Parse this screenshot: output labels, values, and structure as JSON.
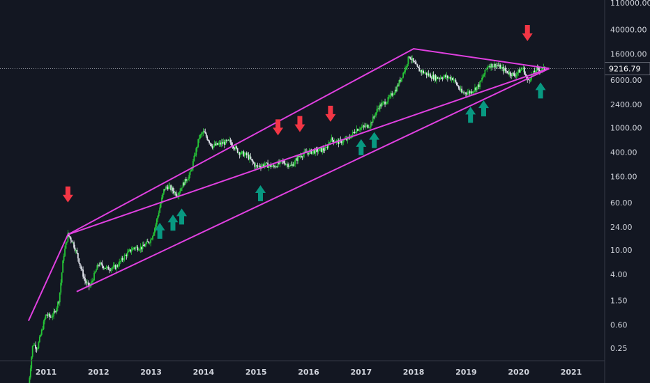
{
  "chart_data": {
    "type": "candlestick",
    "scale": "log",
    "ylim": [
      0.15,
      150000
    ],
    "xlim": [
      "2010-06",
      "2021-08"
    ],
    "yticks": [
      0.25,
      0.6,
      1.5,
      4.0,
      10.0,
      24.0,
      60.0,
      160.0,
      400.0,
      1000.0,
      2400.0,
      6000.0,
      16000.0,
      40000.0,
      110000.0
    ],
    "ytick_labels": [
      "0.25",
      "0.60",
      "1.50",
      "4.00",
      "10.00",
      "24.00",
      "60.00",
      "160.00",
      "400.00",
      "1000.00",
      "2400.00",
      "6000.00",
      "16000.00",
      "40000.00",
      "110000.00"
    ],
    "xticks": [
      "2011",
      "2012",
      "2013",
      "2014",
      "2015",
      "2016",
      "2017",
      "2018",
      "2019",
      "2020",
      "2021"
    ],
    "current_price": 9216.79,
    "current_price_label": "9216.79",
    "colors": {
      "up": "#26c637",
      "down": "#e0e3eb",
      "trendline": "#e040e0",
      "down_arrow": "#f23645",
      "up_arrow": "#089981",
      "background": "#131722",
      "axis_text": "#d1d4dc"
    },
    "price_series": [
      [
        "2010-09",
        0.06
      ],
      [
        "2010-10",
        0.3
      ],
      [
        "2010-11",
        0.25
      ],
      [
        "2011-01",
        0.9
      ],
      [
        "2011-02",
        0.8
      ],
      [
        "2011-03",
        0.95
      ],
      [
        "2011-04",
        1.6
      ],
      [
        "2011-05",
        8
      ],
      [
        "2011-06",
        18
      ],
      [
        "2011-07",
        14
      ],
      [
        "2011-08",
        9
      ],
      [
        "2011-09",
        5
      ],
      [
        "2011-10",
        3
      ],
      [
        "2011-11",
        2.5
      ],
      [
        "2012-01",
        6
      ],
      [
        "2012-03",
        5
      ],
      [
        "2012-05",
        5.3
      ],
      [
        "2012-07",
        8
      ],
      [
        "2012-09",
        11
      ],
      [
        "2012-11",
        11
      ],
      [
        "2013-01",
        15
      ],
      [
        "2013-02",
        25
      ],
      [
        "2013-04",
        100
      ],
      [
        "2013-05",
        110
      ],
      [
        "2013-07",
        80
      ],
      [
        "2013-08",
        110
      ],
      [
        "2013-10",
        180
      ],
      [
        "2013-12",
        700
      ],
      [
        "2014-01",
        850
      ],
      [
        "2014-03",
        500
      ],
      [
        "2014-05",
        550
      ],
      [
        "2014-07",
        600
      ],
      [
        "2014-09",
        400
      ],
      [
        "2014-11",
        350
      ],
      [
        "2015-01",
        230
      ],
      [
        "2015-03",
        250
      ],
      [
        "2015-05",
        230
      ],
      [
        "2015-07",
        280
      ],
      [
        "2015-09",
        235
      ],
      [
        "2015-11",
        350
      ],
      [
        "2016-01",
        400
      ],
      [
        "2016-03",
        420
      ],
      [
        "2016-05",
        450
      ],
      [
        "2016-06",
        650
      ],
      [
        "2016-08",
        580
      ],
      [
        "2016-10",
        650
      ],
      [
        "2016-12",
        950
      ],
      [
        "2017-03",
        1100
      ],
      [
        "2017-05",
        2200
      ],
      [
        "2017-07",
        2800
      ],
      [
        "2017-09",
        4300
      ],
      [
        "2017-11",
        9000
      ],
      [
        "2017-12",
        15000
      ],
      [
        "2018-02",
        9000
      ],
      [
        "2018-04",
        7500
      ],
      [
        "2018-06",
        6500
      ],
      [
        "2018-08",
        6800
      ],
      [
        "2018-10",
        6400
      ],
      [
        "2018-12",
        3700
      ],
      [
        "2019-02",
        3800
      ],
      [
        "2019-04",
        5000
      ],
      [
        "2019-06",
        10500
      ],
      [
        "2019-08",
        10500
      ],
      [
        "2019-10",
        8500
      ],
      [
        "2019-12",
        7200
      ],
      [
        "2020-02",
        9500
      ],
      [
        "2020-03",
        5800
      ],
      [
        "2020-05",
        8800
      ],
      [
        "2020-07",
        9200
      ]
    ],
    "trendlines": [
      {
        "points": [
          [
            "2010-09",
            0.7
          ],
          [
            "2011-06",
            18
          ],
          [
            "2018-01",
            19500
          ],
          [
            "2020-08",
            9300
          ]
        ]
      },
      {
        "points": [
          [
            "2011-06",
            18
          ],
          [
            "2020-08",
            9300
          ]
        ]
      },
      {
        "points": [
          [
            "2011-08",
            2.1
          ],
          [
            "2020-08",
            9300
          ]
        ]
      }
    ],
    "down_arrows": [
      [
        "2011-06",
        60
      ],
      [
        "2015-06",
        750
      ],
      [
        "2015-11",
        850
      ],
      [
        "2016-06",
        1250
      ],
      [
        "2020-03",
        26000
      ]
    ],
    "up_arrows": [
      [
        "2013-03",
        28
      ],
      [
        "2013-06",
        38
      ],
      [
        "2013-08",
        48
      ],
      [
        "2015-02",
        115
      ],
      [
        "2017-01",
        650
      ],
      [
        "2017-04",
        850
      ],
      [
        "2019-02",
        2200
      ],
      [
        "2019-05",
        2800
      ],
      [
        "2020-06",
        5500
      ]
    ]
  }
}
